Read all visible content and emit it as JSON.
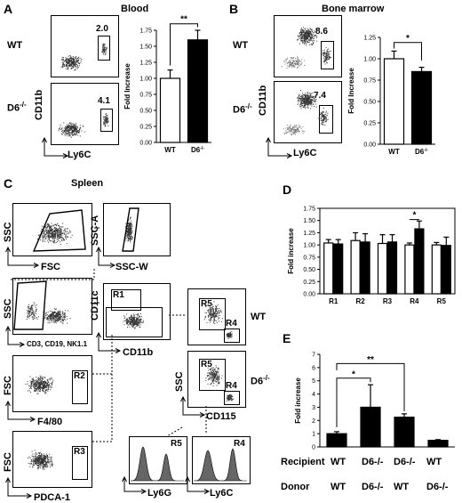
{
  "panels": {
    "A": {
      "letter": "A",
      "title": "Blood",
      "wt": "WT",
      "d6": "D6",
      "sup": "-/-",
      "yaxis_flow": "CD11b",
      "xaxis_flow": "Ly6C",
      "gate_wt": "2.0",
      "gate_d6": "4.1"
    },
    "B": {
      "letter": "B",
      "title": "Bone marrow",
      "wt": "WT",
      "d6": "D6",
      "sup": "-/-",
      "yaxis_flow": "CD11b",
      "xaxis_flow": "Ly6C",
      "gate_wt": "8.6",
      "gate_d6": "7.4"
    },
    "C": {
      "letter": "C",
      "title": "Spleen",
      "ssc": "SSC",
      "fsc": "FSC",
      "ssc_a": "SSC-A",
      "ssc_w": "SSC-W",
      "lineage": "CD3, CD19, NK1.1",
      "cd11c": "CD11c",
      "cd11b": "CD11b",
      "r1": "R1",
      "r2": "R2",
      "r3": "R3",
      "r4": "R4",
      "r5": "R5",
      "f480": "F4/80",
      "pdca": "PDCA-1",
      "cd115": "CD115",
      "wt": "WT",
      "d6": "D6",
      "sup": "-/-",
      "ly6g": "Ly6G",
      "ly6c": "Ly6C"
    },
    "D": {
      "letter": "D"
    },
    "E": {
      "letter": "E",
      "recipient_label": "Recipient",
      "donor_label": "Donor",
      "recipients": [
        "WT",
        "D6-/-",
        "D6-/-",
        "WT"
      ],
      "donors": [
        "WT",
        "D6-/-",
        "WT",
        "D6-/-"
      ]
    }
  },
  "chart_data": [
    {
      "type": "bar",
      "panel": "A",
      "categories": [
        "WT",
        "D6-/-"
      ],
      "values": [
        1.0,
        1.6
      ],
      "errors": [
        0.13,
        0.15
      ],
      "colors": [
        "#ffffff",
        "#000000"
      ],
      "ylabel": "Fold Increase",
      "ylim": [
        0,
        1.75
      ],
      "yticks": [
        0.0,
        0.25,
        0.5,
        0.75,
        1.0,
        1.25,
        1.5,
        1.75
      ],
      "significance": "**"
    },
    {
      "type": "bar",
      "panel": "B",
      "categories": [
        "WT",
        "D6-/-"
      ],
      "values": [
        1.0,
        0.85
      ],
      "errors": [
        0.09,
        0.05
      ],
      "colors": [
        "#ffffff",
        "#000000"
      ],
      "ylabel": "Fold Increase",
      "ylim": [
        0,
        1.25
      ],
      "yticks": [
        0.0,
        0.25,
        0.5,
        0.75,
        1.0,
        1.25
      ],
      "significance": "*"
    },
    {
      "type": "bar",
      "panel": "D",
      "categories": [
        "R1",
        "R2",
        "R3",
        "R4",
        "R5"
      ],
      "series": [
        {
          "values": [
            1.04,
            1.09,
            1.03,
            1.0,
            1.0
          ],
          "errors": [
            0.07,
            0.16,
            0.18,
            0.04,
            0.05
          ],
          "color": "#ffffff"
        },
        {
          "values": [
            1.02,
            1.06,
            1.06,
            1.33,
            0.99
          ],
          "errors": [
            0.09,
            0.17,
            0.15,
            0.16,
            0.17
          ],
          "color": "#000000"
        }
      ],
      "ylabel": "Fold increase",
      "ylim": [
        0,
        1.75
      ],
      "yticks": [
        0.0,
        0.25,
        0.5,
        0.75,
        1.0,
        1.25,
        1.5,
        1.75
      ],
      "significance": "*"
    },
    {
      "type": "bar",
      "panel": "E",
      "categories": [
        "WT/WT",
        "D6-/-/D6-/-",
        "D6-/-/WT",
        "WT/D6-/-"
      ],
      "values": [
        1.0,
        3.0,
        2.25,
        0.5
      ],
      "errors": [
        0.15,
        1.7,
        0.25,
        0.05
      ],
      "colors": [
        "#000000",
        "#000000",
        "#000000",
        "#000000"
      ],
      "ylabel": "Fold increase",
      "ylim": [
        0,
        7
      ],
      "yticks": [
        0,
        1,
        2,
        3,
        4,
        5,
        6,
        7
      ],
      "significance": [
        "*",
        "**"
      ]
    }
  ]
}
